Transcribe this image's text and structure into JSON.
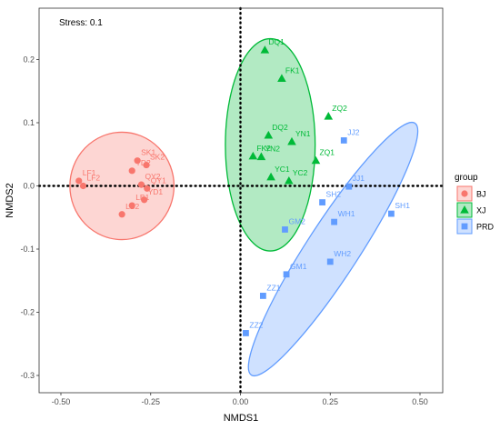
{
  "chart_data": {
    "type": "scatter",
    "title": "",
    "annotation": "Stress: 0.1",
    "xlabel": "NMDS1",
    "ylabel": "NMDS2",
    "xlim": [
      -0.55,
      0.53
    ],
    "ylim": [
      -0.335,
      0.26
    ],
    "xticks": [
      -0.5,
      -0.25,
      0,
      0.25,
      0.5
    ],
    "xtick_labels": [
      "-0.50",
      "-0.25",
      "0.00",
      "0.25",
      "0.50"
    ],
    "yticks": [
      -0.3,
      -0.2,
      -0.1,
      0,
      0.1,
      0.2
    ],
    "ytick_labels": [
      "-0.3",
      "-0.2",
      "-0.1",
      "0.0",
      "0.1",
      "0.2"
    ],
    "grid": false,
    "reference_lines": {
      "x": 0,
      "y": 0,
      "style": "dotted"
    },
    "legend": {
      "title": "group",
      "placement": "right"
    },
    "series": [
      {
        "name": "BJ",
        "marker": "circle",
        "color": "#F8766D",
        "ellipse": {
          "cx": -0.33,
          "cy": 0.0,
          "rx": 0.145,
          "ry": 0.085,
          "angle": 0
        },
        "points": [
          {
            "label": "LF1",
            "x": -0.45,
            "y": 0.008
          },
          {
            "label": "LF2",
            "x": -0.438,
            "y": 0.0
          },
          {
            "label": "SK1",
            "x": -0.287,
            "y": 0.04
          },
          {
            "label": "YD2",
            "x": -0.302,
            "y": 0.024
          },
          {
            "label": "SK2",
            "x": -0.262,
            "y": 0.033
          },
          {
            "label": "QY2",
            "x": -0.276,
            "y": 0.002
          },
          {
            "label": "QY1",
            "x": -0.26,
            "y": -0.004
          },
          {
            "label": "YD1",
            "x": -0.268,
            "y": -0.022
          },
          {
            "label": "LB1",
            "x": -0.302,
            "y": -0.031
          },
          {
            "label": "LB2",
            "x": -0.33,
            "y": -0.045
          }
        ]
      },
      {
        "name": "XJ",
        "marker": "triangle",
        "color": "#00BA38",
        "ellipse": {
          "cx": 0.083,
          "cy": 0.065,
          "rx": 0.168,
          "ry": 0.125,
          "angle": 90
        },
        "points": [
          {
            "label": "DQ1",
            "x": 0.068,
            "y": 0.215
          },
          {
            "label": "FK1",
            "x": 0.115,
            "y": 0.17
          },
          {
            "label": "ZQ2",
            "x": 0.245,
            "y": 0.11
          },
          {
            "label": "DQ2",
            "x": 0.078,
            "y": 0.08
          },
          {
            "label": "YN1",
            "x": 0.143,
            "y": 0.07
          },
          {
            "label": "FK2",
            "x": 0.035,
            "y": 0.047
          },
          {
            "label": "YN2",
            "x": 0.058,
            "y": 0.046
          },
          {
            "label": "ZQ1",
            "x": 0.21,
            "y": 0.04
          },
          {
            "label": "YC1",
            "x": 0.085,
            "y": 0.014
          },
          {
            "label": "YC2",
            "x": 0.135,
            "y": 0.008
          }
        ]
      },
      {
        "name": "PRD",
        "marker": "square",
        "color": "#619CFF",
        "ellipse": {
          "cx": 0.258,
          "cy": -0.1,
          "rx": 0.295,
          "ry": 0.128,
          "angle": -57
        },
        "points": [
          {
            "label": "JJ2",
            "x": 0.288,
            "y": 0.072
          },
          {
            "label": "JJ1",
            "x": 0.302,
            "y": -0.001
          },
          {
            "label": "SH2",
            "x": 0.228,
            "y": -0.026
          },
          {
            "label": "WH1",
            "x": 0.261,
            "y": -0.057
          },
          {
            "label": "SH1",
            "x": 0.42,
            "y": -0.044
          },
          {
            "label": "GM2",
            "x": 0.124,
            "y": -0.069
          },
          {
            "label": "WH2",
            "x": 0.25,
            "y": -0.12
          },
          {
            "label": "GM1",
            "x": 0.128,
            "y": -0.14
          },
          {
            "label": "ZZ1",
            "x": 0.063,
            "y": -0.174
          },
          {
            "label": "ZZ2",
            "x": 0.015,
            "y": -0.233
          }
        ]
      }
    ]
  }
}
